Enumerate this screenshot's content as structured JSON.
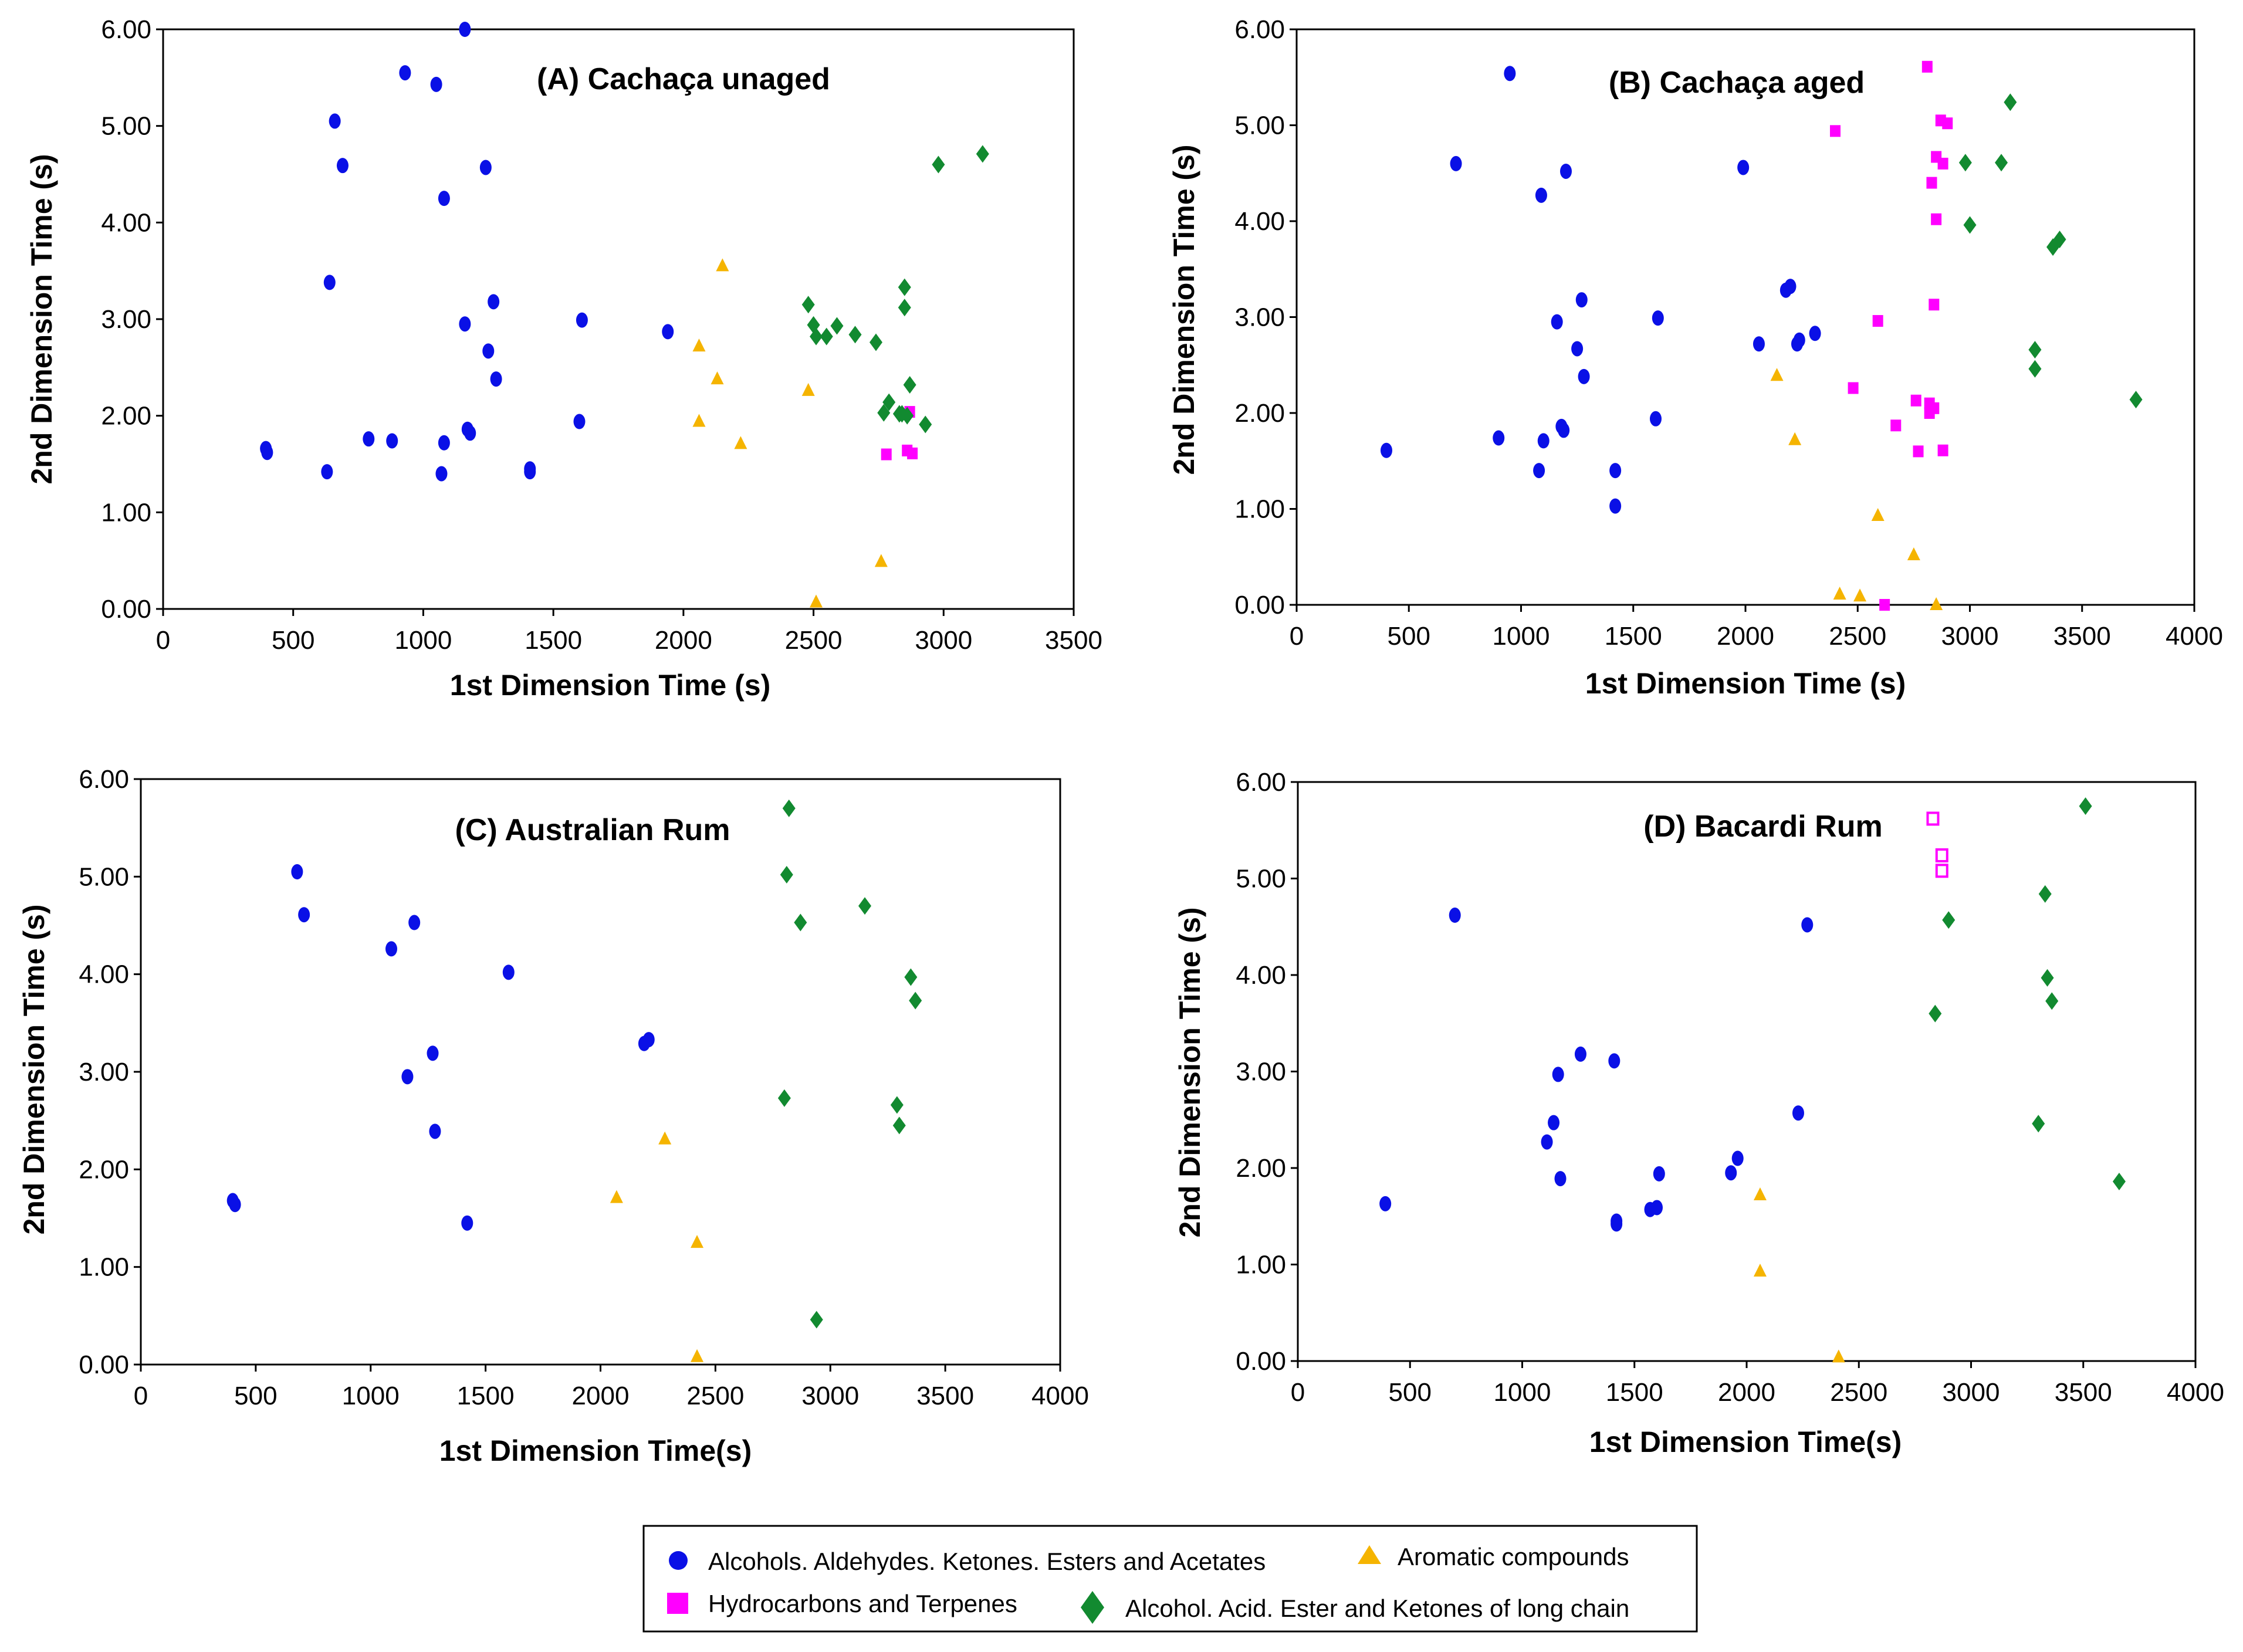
{
  "colors": {
    "alcohols": "#0a10e6",
    "aromatic": "#f5b400",
    "hydrocarbons": "#ff00ff",
    "long_chain": "#128a30"
  },
  "legend": {
    "items": [
      {
        "key": "alcohols",
        "label": "Alcohols. Aldehydes. Ketones. Esters and Acetates",
        "shape": "circle"
      },
      {
        "key": "aromatic",
        "label": "Aromatic compounds",
        "shape": "triangle"
      },
      {
        "key": "hydrocarbons",
        "label": "Hydrocarbons and Terpenes",
        "shape": "square"
      },
      {
        "key": "long_chain",
        "label": "Alcohol. Acid. Ester and Ketones of long chain",
        "shape": "diamond"
      }
    ]
  },
  "chart_data": [
    {
      "type": "scatter",
      "title": "(A) Cachaça unaged",
      "xlabel": "1st Dimension Time (s)",
      "ylabel": "2nd Dimension Time (s)",
      "xlim": [
        0,
        3500
      ],
      "ylim": [
        0,
        6
      ],
      "xticks": [
        "0",
        "500",
        "1000",
        "1500",
        "2000",
        "2500",
        "3000",
        "3500"
      ],
      "yticks": [
        "0.00",
        "1.00",
        "2.00",
        "3.00",
        "4.00",
        "5.00",
        "6.00"
      ],
      "series": [
        {
          "name": "alcohols",
          "points": [
            [
              395,
              1.66
            ],
            [
              400,
              1.62
            ],
            [
              630,
              1.42
            ],
            [
              640,
              3.38
            ],
            [
              660,
              5.05
            ],
            [
              690,
              4.59
            ],
            [
              790,
              1.76
            ],
            [
              880,
              1.74
            ],
            [
              930,
              5.55
            ],
            [
              1050,
              5.43
            ],
            [
              1070,
              1.4
            ],
            [
              1080,
              4.25
            ],
            [
              1080,
              1.72
            ],
            [
              1160,
              2.95
            ],
            [
              1160,
              6.0
            ],
            [
              1170,
              1.86
            ],
            [
              1180,
              1.82
            ],
            [
              1240,
              4.57
            ],
            [
              1250,
              2.67
            ],
            [
              1270,
              3.18
            ],
            [
              1280,
              2.38
            ],
            [
              1410,
              1.45
            ],
            [
              1410,
              1.42
            ],
            [
              1600,
              1.94
            ],
            [
              1610,
              2.99
            ],
            [
              1940,
              2.87
            ]
          ]
        },
        {
          "name": "aromatic",
          "points": [
            [
              2060,
              1.94
            ],
            [
              2060,
              2.72
            ],
            [
              2130,
              2.38
            ],
            [
              2150,
              3.55
            ],
            [
              2220,
              1.71
            ],
            [
              2480,
              2.26
            ],
            [
              2510,
              0.07
            ],
            [
              2760,
              0.49
            ]
          ]
        },
        {
          "name": "hydrocarbons",
          "points": [
            [
              2780,
              1.6
            ],
            [
              2860,
              1.64
            ],
            [
              2870,
              2.04
            ],
            [
              2880,
              1.61
            ]
          ]
        },
        {
          "name": "long_chain",
          "points": [
            [
              2480,
              3.15
            ],
            [
              2500,
              2.94
            ],
            [
              2510,
              2.82
            ],
            [
              2550,
              2.82
            ],
            [
              2590,
              2.93
            ],
            [
              2660,
              2.84
            ],
            [
              2740,
              2.76
            ],
            [
              2770,
              2.03
            ],
            [
              2790,
              2.14
            ],
            [
              2830,
              2.02
            ],
            [
              2840,
              2.02
            ],
            [
              2850,
              3.33
            ],
            [
              2850,
              3.12
            ],
            [
              2860,
              2.0
            ],
            [
              2870,
              2.32
            ],
            [
              2930,
              1.91
            ],
            [
              2980,
              4.6
            ],
            [
              3150,
              4.71
            ]
          ]
        }
      ]
    },
    {
      "type": "scatter",
      "title": "(B) Cachaça aged",
      "xlabel": "1st Dimension Time (s)",
      "ylabel": "2nd Dimension Time (s)",
      "xlim": [
        0,
        4000
      ],
      "ylim": [
        0,
        6
      ],
      "xticks": [
        "0",
        "500",
        "1000",
        "1500",
        "2000",
        "2500",
        "3000",
        "3500",
        "4000"
      ],
      "yticks": [
        "0.00",
        "1.00",
        "2.00",
        "3.00",
        "4.00",
        "5.00",
        "6.00"
      ],
      "series": [
        {
          "name": "alcohols",
          "points": [
            [
              400,
              1.61
            ],
            [
              710,
              4.6
            ],
            [
              900,
              1.74
            ],
            [
              950,
              5.54
            ],
            [
              1080,
              1.4
            ],
            [
              1090,
              4.27
            ],
            [
              1100,
              1.71
            ],
            [
              1160,
              2.95
            ],
            [
              1180,
              1.86
            ],
            [
              1190,
              1.82
            ],
            [
              1200,
              4.52
            ],
            [
              1250,
              2.67
            ],
            [
              1270,
              3.18
            ],
            [
              1280,
              2.38
            ],
            [
              1420,
              1.4
            ],
            [
              1420,
              1.03
            ],
            [
              1600,
              1.94
            ],
            [
              1610,
              2.99
            ],
            [
              1990,
              4.56
            ],
            [
              2060,
              2.72
            ],
            [
              2180,
              3.28
            ],
            [
              2200,
              3.32
            ],
            [
              2230,
              2.72
            ],
            [
              2240,
              2.76
            ],
            [
              2310,
              2.83
            ]
          ]
        },
        {
          "name": "aromatic",
          "points": [
            [
              2140,
              2.39
            ],
            [
              2220,
              1.72
            ],
            [
              2590,
              0.93
            ],
            [
              2420,
              0.11
            ],
            [
              2510,
              0.09
            ],
            [
              2750,
              0.52
            ],
            [
              2850,
              0.0
            ]
          ]
        },
        {
          "name": "hydrocarbons",
          "points": [
            [
              2400,
              4.94
            ],
            [
              2480,
              2.26
            ],
            [
              2590,
              2.96
            ],
            [
              2620,
              0.0
            ],
            [
              2670,
              1.87
            ],
            [
              2760,
              2.13
            ],
            [
              2770,
              1.6
            ],
            [
              2810,
              5.61
            ],
            [
              2820,
              2.0
            ],
            [
              2820,
              2.1
            ],
            [
              2830,
              4.4
            ],
            [
              2840,
              2.05
            ],
            [
              2840,
              3.13
            ],
            [
              2850,
              4.67
            ],
            [
              2850,
              4.02
            ],
            [
              2870,
              5.05
            ],
            [
              2880,
              4.6
            ],
            [
              2880,
              1.61
            ],
            [
              2900,
              5.02
            ]
          ]
        },
        {
          "name": "long_chain",
          "points": [
            [
              2980,
              4.61
            ],
            [
              3000,
              3.96
            ],
            [
              3140,
              4.61
            ],
            [
              3180,
              5.24
            ],
            [
              3290,
              2.66
            ],
            [
              3290,
              2.46
            ],
            [
              3370,
              3.73
            ],
            [
              3400,
              3.81
            ],
            [
              3740,
              2.14
            ]
          ]
        }
      ]
    },
    {
      "type": "scatter",
      "title": "(C) Australian Rum",
      "xlabel": "1st Dimension Time(s)",
      "ylabel": "2nd Dimension Time (s)",
      "xlim": [
        0,
        4000
      ],
      "ylim": [
        0,
        6
      ],
      "xticks": [
        "0",
        "500",
        "1000",
        "1500",
        "2000",
        "2500",
        "3000",
        "3500",
        "4000"
      ],
      "yticks": [
        "0.00",
        "1.00",
        "2.00",
        "3.00",
        "4.00",
        "5.00",
        "6.00"
      ],
      "series": [
        {
          "name": "alcohols",
          "points": [
            [
              400,
              1.68
            ],
            [
              410,
              1.64
            ],
            [
              680,
              5.05
            ],
            [
              710,
              4.61
            ],
            [
              1090,
              4.26
            ],
            [
              1160,
              2.95
            ],
            [
              1190,
              4.53
            ],
            [
              1270,
              3.19
            ],
            [
              1280,
              2.39
            ],
            [
              1420,
              1.45
            ],
            [
              1600,
              4.02
            ],
            [
              2190,
              3.29
            ],
            [
              2210,
              3.33
            ]
          ]
        },
        {
          "name": "aromatic",
          "points": [
            [
              2070,
              1.71
            ],
            [
              2280,
              2.31
            ],
            [
              2420,
              1.25
            ],
            [
              2420,
              0.08
            ]
          ]
        },
        {
          "name": "hydrocarbons",
          "points": []
        },
        {
          "name": "long_chain",
          "points": [
            [
              2800,
              2.73
            ],
            [
              2810,
              5.02
            ],
            [
              2820,
              5.7
            ],
            [
              2870,
              4.53
            ],
            [
              2940,
              0.46
            ],
            [
              3150,
              4.7
            ],
            [
              3290,
              2.66
            ],
            [
              3300,
              2.45
            ],
            [
              3350,
              3.97
            ],
            [
              3370,
              3.73
            ]
          ]
        }
      ]
    },
    {
      "type": "scatter",
      "title": "(D)  Bacardi Rum",
      "xlabel": "1st Dimension Time(s)",
      "ylabel": "2nd Dimension Time (s)",
      "xlim": [
        0,
        4000
      ],
      "ylim": [
        0,
        6
      ],
      "xticks": [
        "0",
        "500",
        "1000",
        "1500",
        "2000",
        "2500",
        "3000",
        "3500",
        "4000"
      ],
      "yticks": [
        "0.00",
        "1.00",
        "2.00",
        "3.00",
        "4.00",
        "5.00",
        "6.00"
      ],
      "series": [
        {
          "name": "alcohols",
          "points": [
            [
              390,
              1.63
            ],
            [
              700,
              4.62
            ],
            [
              1110,
              2.27
            ],
            [
              1140,
              2.47
            ],
            [
              1160,
              2.97
            ],
            [
              1170,
              1.89
            ],
            [
              1260,
              3.18
            ],
            [
              1410,
              3.11
            ],
            [
              1420,
              1.45
            ],
            [
              1420,
              1.42
            ],
            [
              1570,
              1.57
            ],
            [
              1600,
              1.59
            ],
            [
              1610,
              1.94
            ],
            [
              1930,
              1.95
            ],
            [
              1960,
              2.1
            ],
            [
              2230,
              2.57
            ],
            [
              2270,
              4.52
            ]
          ]
        },
        {
          "name": "aromatic",
          "points": [
            [
              2060,
              1.72
            ],
            [
              2060,
              0.93
            ],
            [
              2410,
              0.04
            ]
          ]
        },
        {
          "name": "hydrocarbons",
          "points": [
            [
              2830,
              5.62
            ],
            [
              2870,
              5.24
            ],
            [
              2870,
              5.08
            ]
          ]
        },
        {
          "name": "long_chain",
          "points": [
            [
              2840,
              3.6
            ],
            [
              2900,
              4.57
            ],
            [
              3300,
              2.46
            ],
            [
              3330,
              4.84
            ],
            [
              3340,
              3.97
            ],
            [
              3360,
              3.73
            ],
            [
              3510,
              5.75
            ],
            [
              3660,
              1.86
            ]
          ]
        }
      ]
    }
  ]
}
